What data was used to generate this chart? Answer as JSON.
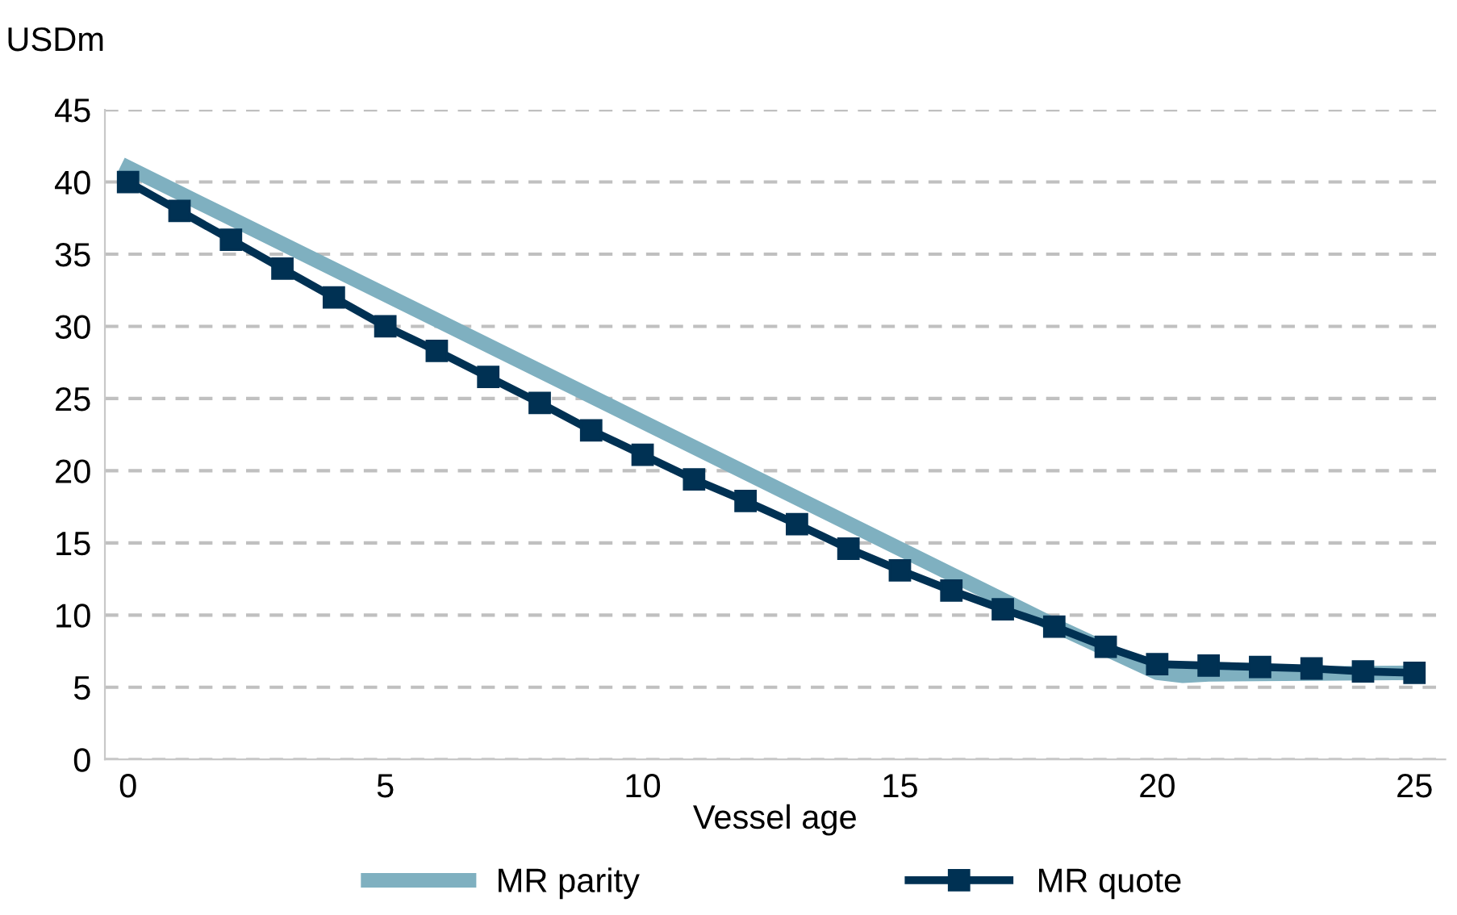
{
  "chart_data": {
    "type": "line",
    "ylabel": "USDm",
    "xlabel": "Vessel age",
    "xlim": [
      -0.45,
      25.6
    ],
    "xticks": [
      0,
      5,
      10,
      15,
      20,
      25
    ],
    "ylim": [
      0,
      45
    ],
    "yticks": [
      0,
      5,
      10,
      15,
      20,
      25,
      30,
      35,
      40,
      45
    ],
    "grid": "y",
    "legend": "bottom",
    "series": [
      {
        "name": "MR parity",
        "color": "#7fb0c0",
        "marker": "none",
        "x": [
          0,
          18,
          20,
          20.5,
          21,
          25
        ],
        "values": [
          41,
          9.3,
          6.0,
          5.8,
          5.9,
          6.0
        ]
      },
      {
        "name": "MR quote",
        "color": "#003153",
        "marker": "square",
        "x": [
          0,
          1,
          2,
          3,
          4,
          5,
          6,
          7,
          8,
          9,
          10,
          11,
          12,
          13,
          14,
          15,
          16,
          17,
          18,
          19,
          20,
          21,
          22,
          23,
          24,
          25
        ],
        "values": [
          40,
          38,
          36,
          34,
          32,
          30,
          28.3,
          26.5,
          24.7,
          22.8,
          21.1,
          19.4,
          17.9,
          16.3,
          14.6,
          13.1,
          11.7,
          10.4,
          9.2,
          7.8,
          6.6,
          6.5,
          6.4,
          6.3,
          6.1,
          6.0
        ]
      }
    ]
  }
}
